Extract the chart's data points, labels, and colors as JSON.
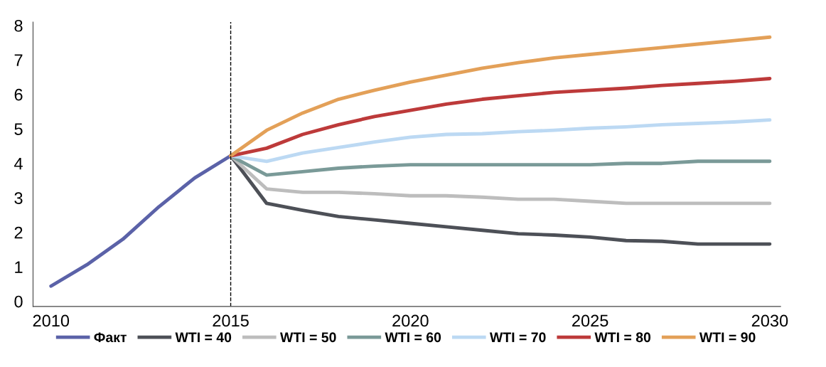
{
  "chart_data": {
    "type": "line",
    "xlim": [
      2009.5,
      2030.3
    ],
    "ylim": [
      -0.15,
      8.1
    ],
    "xticks": [
      2010,
      2015,
      2020,
      2025,
      2030
    ],
    "yticks": [
      0,
      1,
      2,
      3,
      4,
      5,
      6,
      7,
      8
    ],
    "grid": false,
    "legend": "bottom",
    "marker": "none",
    "line_style": "solid",
    "ref_lines": [
      {
        "axis": "x",
        "value": 2015,
        "color": "#000000",
        "line_style": "dashed"
      }
    ],
    "series": [
      {
        "name": "Факт",
        "color": "#5b62a8",
        "x": [
          2010,
          2011,
          2012,
          2013,
          2014,
          2015
        ],
        "values": [
          0.44,
          1.06,
          1.8,
          2.74,
          3.58,
          4.22
        ]
      },
      {
        "name": "WTI = 40",
        "color": "#4d5057",
        "x": [
          2015,
          2016,
          2017,
          2018,
          2019,
          2020,
          2021,
          2022,
          2023,
          2024,
          2025,
          2026,
          2027,
          2028,
          2029,
          2030
        ],
        "values": [
          4.22,
          2.84,
          2.64,
          2.46,
          2.36,
          2.26,
          2.16,
          2.06,
          1.96,
          1.92,
          1.86,
          1.76,
          1.74,
          1.66,
          1.66,
          1.66
        ]
      },
      {
        "name": "WTI = 50",
        "color": "#bdbdbd",
        "x": [
          2015,
          2016,
          2017,
          2018,
          2019,
          2020,
          2021,
          2022,
          2023,
          2024,
          2025,
          2026,
          2027,
          2028,
          2029,
          2030
        ],
        "values": [
          4.22,
          3.26,
          3.16,
          3.16,
          3.12,
          3.06,
          3.06,
          3.02,
          2.96,
          2.96,
          2.9,
          2.84,
          2.84,
          2.84,
          2.84,
          2.84
        ]
      },
      {
        "name": "WTI = 60",
        "color": "#7a9a98",
        "x": [
          2015,
          2016,
          2017,
          2018,
          2019,
          2020,
          2021,
          2022,
          2023,
          2024,
          2025,
          2026,
          2027,
          2028,
          2029,
          2030
        ],
        "values": [
          4.22,
          3.66,
          3.76,
          3.86,
          3.92,
          3.96,
          3.96,
          3.96,
          3.96,
          3.96,
          3.96,
          4.0,
          4.0,
          4.06,
          4.06,
          4.06
        ]
      },
      {
        "name": "WTI = 70",
        "color": "#bcd9f3",
        "x": [
          2015,
          2016,
          2017,
          2018,
          2019,
          2020,
          2021,
          2022,
          2023,
          2024,
          2025,
          2026,
          2027,
          2028,
          2029,
          2030
        ],
        "values": [
          4.22,
          4.06,
          4.3,
          4.46,
          4.62,
          4.76,
          4.84,
          4.86,
          4.92,
          4.96,
          5.02,
          5.06,
          5.12,
          5.16,
          5.2,
          5.26
        ]
      },
      {
        "name": "WTI = 80",
        "color": "#bd3a3a",
        "x": [
          2015,
          2016,
          2017,
          2018,
          2019,
          2020,
          2021,
          2022,
          2023,
          2024,
          2025,
          2026,
          2027,
          2028,
          2029,
          2030
        ],
        "values": [
          4.22,
          4.44,
          4.84,
          5.12,
          5.36,
          5.54,
          5.72,
          5.86,
          5.96,
          6.06,
          6.12,
          6.18,
          6.26,
          6.32,
          6.38,
          6.46
        ]
      },
      {
        "name": "WTI = 90",
        "color": "#e3a058",
        "x": [
          2015,
          2016,
          2017,
          2018,
          2019,
          2020,
          2021,
          2022,
          2023,
          2024,
          2025,
          2026,
          2027,
          2028,
          2029,
          2030
        ],
        "values": [
          4.22,
          4.96,
          5.46,
          5.86,
          6.12,
          6.36,
          6.56,
          6.76,
          6.92,
          7.06,
          7.16,
          7.26,
          7.36,
          7.46,
          7.56,
          7.66
        ]
      }
    ]
  }
}
